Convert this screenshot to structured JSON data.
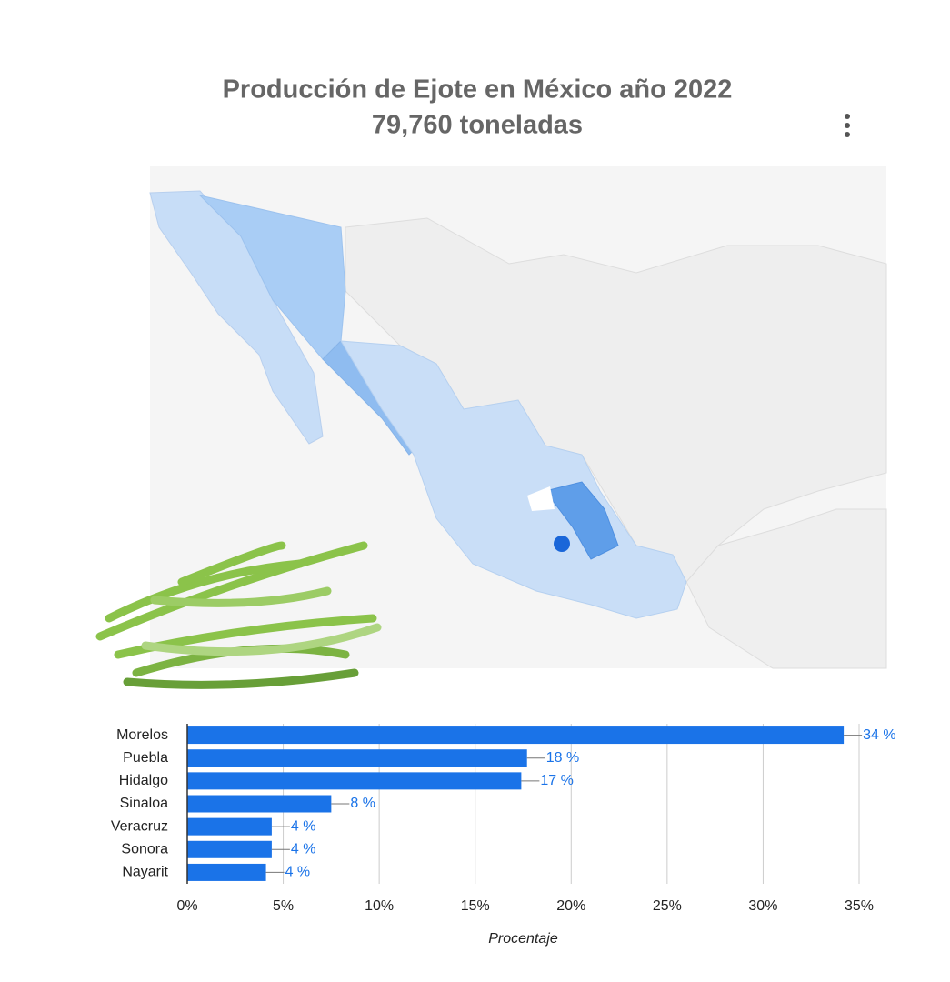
{
  "chart_data": {
    "type": "bar",
    "orientation": "horizontal",
    "title": "Producción de Ejote en México año 2022",
    "subtitle": "79,760 toneladas",
    "categories": [
      "Morelos",
      "Puebla",
      "Hidalgo",
      "Sinaloa",
      "Veracruz",
      "Sonora",
      "Nayarit"
    ],
    "values": [
      34.2,
      17.7,
      17.4,
      7.5,
      4.4,
      4.4,
      4.1
    ],
    "value_labels": [
      "34 %",
      "18 %",
      "17 %",
      "8 %",
      "4 %",
      "4 %",
      "4 %"
    ],
    "color": "#1a73e8",
    "xlim": [
      0,
      35
    ],
    "xticks": [
      {
        "value": 0,
        "label": "0%"
      },
      {
        "value": 5,
        "label": "5%"
      },
      {
        "value": 10,
        "label": "10%"
      },
      {
        "value": 15,
        "label": "15%"
      },
      {
        "value": 20,
        "label": "20%"
      },
      {
        "value": 25,
        "label": "25%"
      },
      {
        "value": 30,
        "label": "30%"
      },
      {
        "value": 35,
        "label": "35%"
      }
    ],
    "xlabel": "Procentaje",
    "grid": true
  }
}
